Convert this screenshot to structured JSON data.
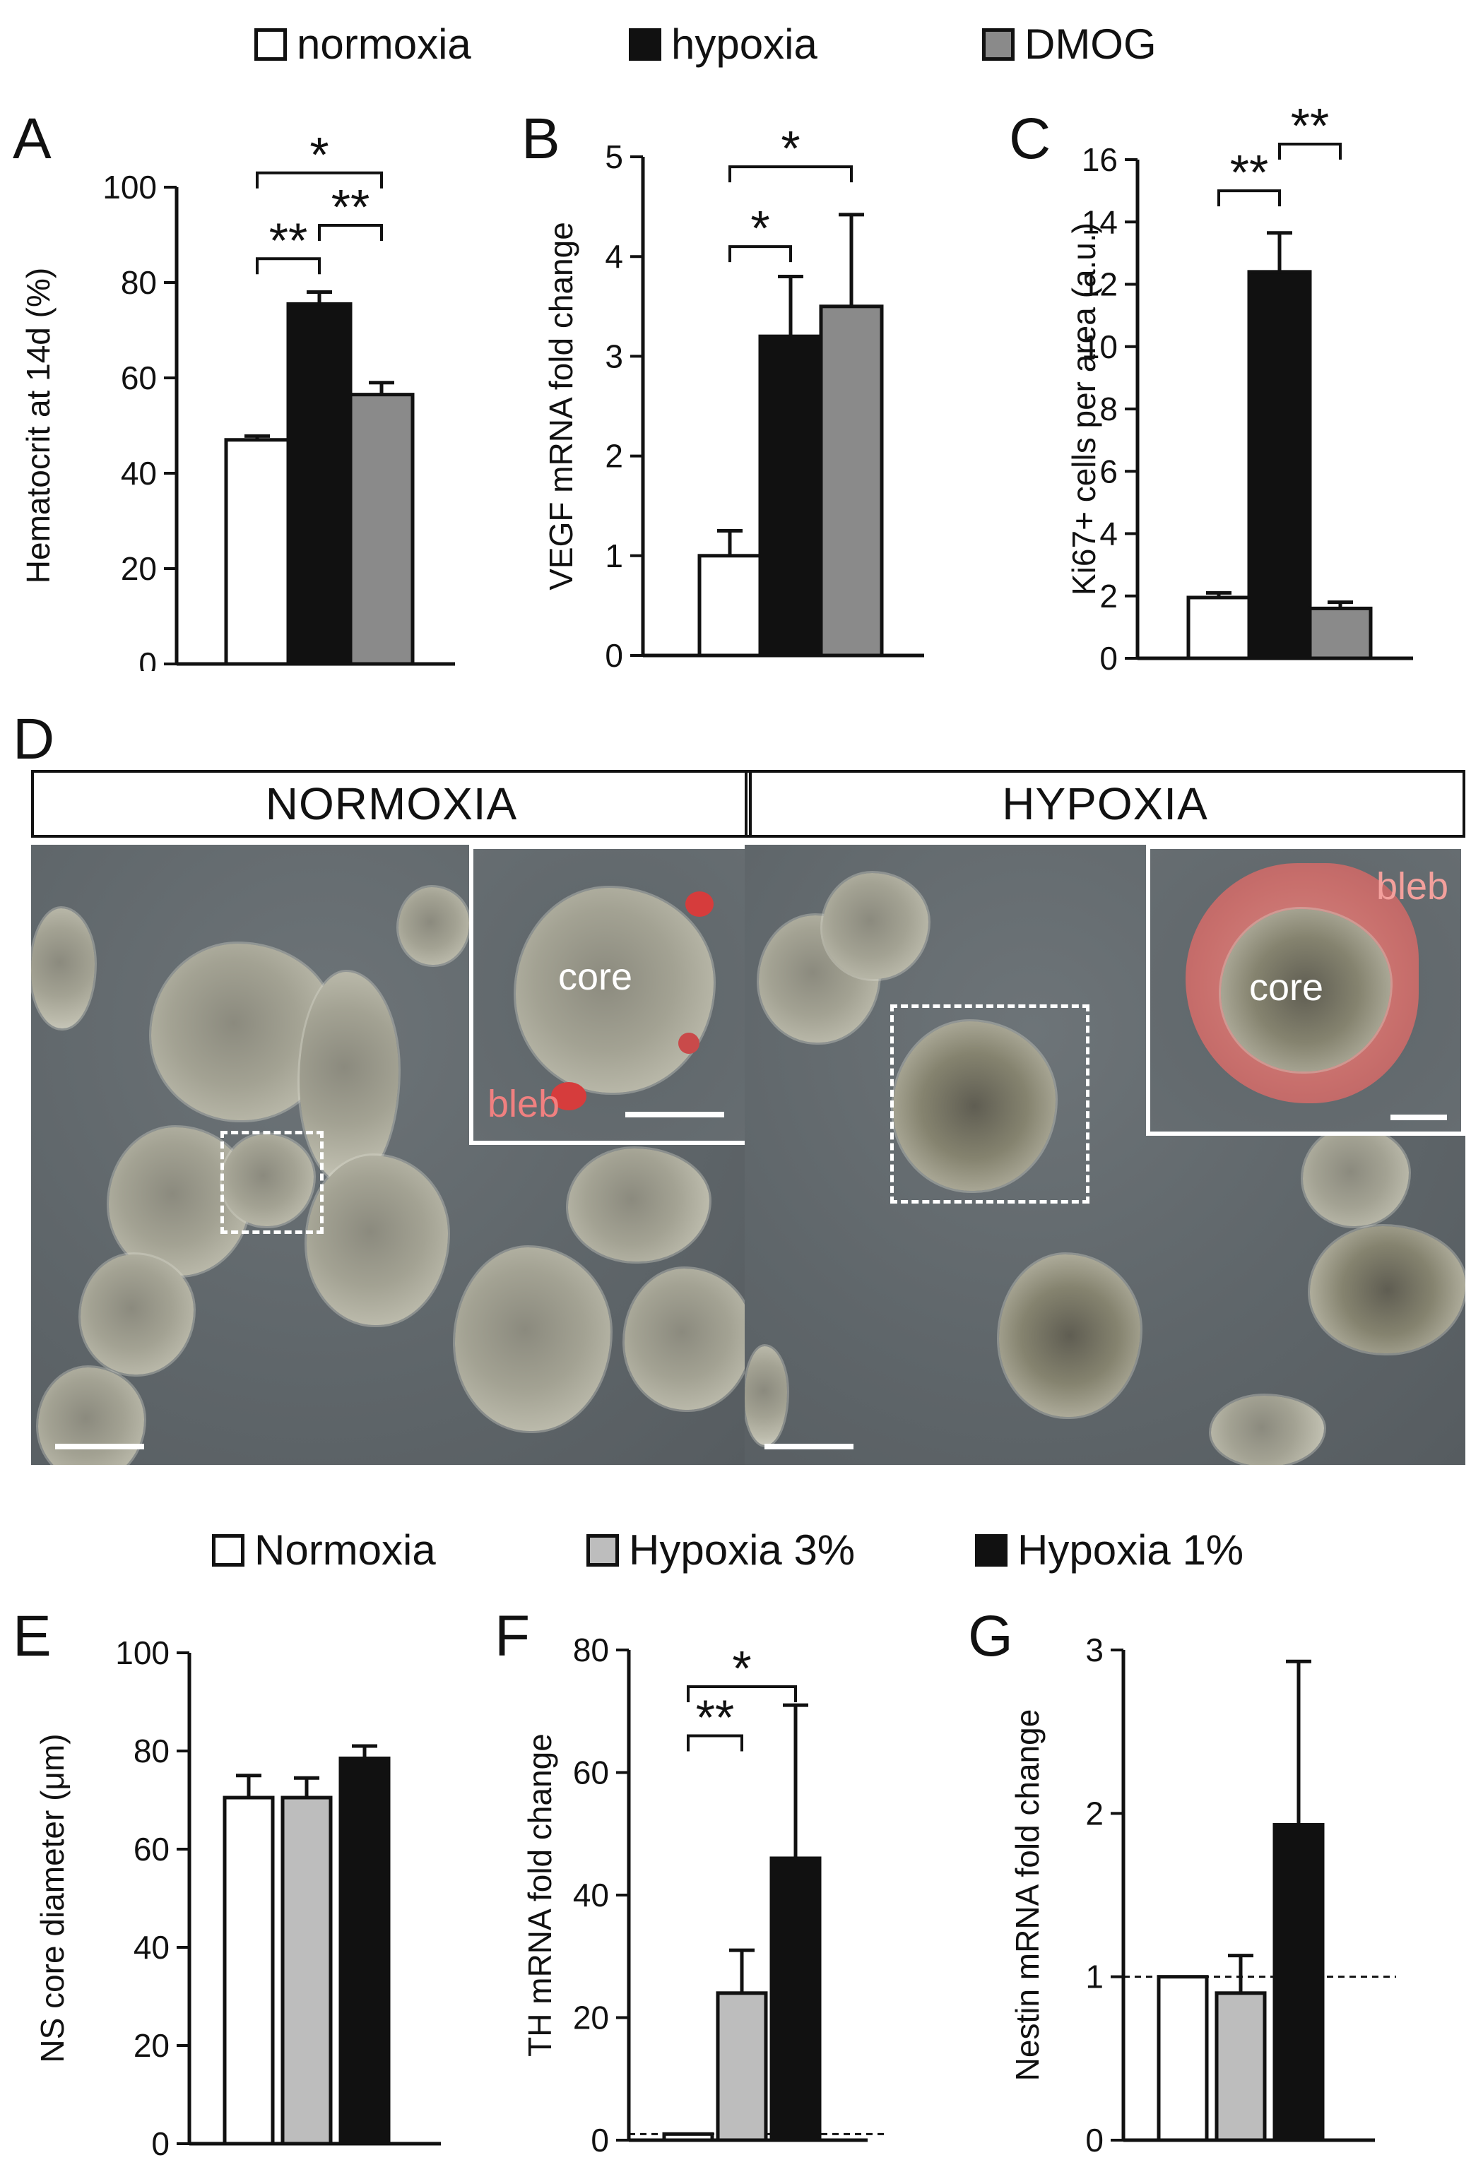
{
  "legend_top": [
    {
      "label": "normoxia",
      "color": "#ffffff"
    },
    {
      "label": "hypoxia",
      "color": "#111111"
    },
    {
      "label": "DMOG",
      "color": "#8a8a8a"
    }
  ],
  "legend_bottom": [
    {
      "label": "Normoxia",
      "color": "#ffffff"
    },
    {
      "label": "Hypoxia 3%",
      "color": "#bdbdbd"
    },
    {
      "label": "Hypoxia 1%",
      "color": "#111111"
    }
  ],
  "panel_letters": {
    "A": "A",
    "B": "B",
    "C": "C",
    "D": "D",
    "E": "E",
    "F": "F",
    "G": "G"
  },
  "microscopy": {
    "normoxia_title": "NORMOXIA",
    "hypoxia_title": "HYPOXIA",
    "core_label": "core",
    "bleb_label": "bleb"
  },
  "chart_data": [
    {
      "id": "A",
      "type": "bar",
      "ylabel": "Hematocrit at 14d (%)",
      "ylim": [
        0,
        100
      ],
      "yticks": [
        0,
        20,
        40,
        60,
        80,
        100
      ],
      "values": [
        47,
        75.5,
        56.5
      ],
      "errors": [
        0.8,
        2.5,
        2.5
      ],
      "colors": [
        "#ffffff",
        "#111111",
        "#8a8a8a"
      ],
      "sig": [
        {
          "from": 0,
          "to": 1,
          "label": "**",
          "level": 85
        },
        {
          "from": 1,
          "to": 2,
          "label": "**",
          "level": 92
        },
        {
          "from": 0,
          "to": 2,
          "label": "*",
          "level": 103
        }
      ]
    },
    {
      "id": "B",
      "type": "bar",
      "ylabel": "VEGF mRNA fold change",
      "ylim": [
        0,
        5
      ],
      "yticks": [
        0,
        1,
        2,
        3,
        4,
        5
      ],
      "values": [
        1.0,
        3.2,
        3.5
      ],
      "errors": [
        0.25,
        0.6,
        0.92
      ],
      "colors": [
        "#ffffff",
        "#111111",
        "#8a8a8a"
      ],
      "sig": [
        {
          "from": 0,
          "to": 1,
          "label": "*",
          "level": 4.1
        },
        {
          "from": 0,
          "to": 2,
          "label": "*",
          "level": 4.9
        }
      ]
    },
    {
      "id": "C",
      "type": "bar",
      "ylabel": "Ki67+ cells per area (a.u.)",
      "ylim": [
        0,
        16
      ],
      "yticks": [
        0,
        2,
        4,
        6,
        8,
        10,
        12,
        14,
        16
      ],
      "values": [
        1.95,
        12.4,
        1.6
      ],
      "errors": [
        0.15,
        1.25,
        0.2
      ],
      "colors": [
        "#ffffff",
        "#111111",
        "#8a8a8a"
      ],
      "sig": [
        {
          "from": 0,
          "to": 1,
          "label": "**",
          "level": 15.0
        },
        {
          "from": 1,
          "to": 2,
          "label": "**",
          "level": 16.5
        }
      ]
    },
    {
      "id": "E",
      "type": "bar",
      "ylabel": "NS core diameter (μm)",
      "ylim": [
        0,
        100
      ],
      "yticks": [
        0,
        20,
        40,
        60,
        80,
        100
      ],
      "values": [
        70.5,
        70.5,
        78.5
      ],
      "errors": [
        4.5,
        4.0,
        2.5
      ],
      "colors": [
        "#ffffff",
        "#bdbdbd",
        "#111111"
      ],
      "sig": []
    },
    {
      "id": "F",
      "type": "bar",
      "ylabel": "TH mRNA fold change",
      "ylim": [
        0,
        80
      ],
      "yticks": [
        0,
        20,
        40,
        60,
        80
      ],
      "values": [
        1,
        24,
        46
      ],
      "errors": [
        0,
        7,
        25
      ],
      "colors": [
        "#ffffff",
        "#bdbdbd",
        "#111111"
      ],
      "reference_line": 1,
      "sig": [
        {
          "from": 0,
          "to": 1,
          "label": "**",
          "level": 66
        },
        {
          "from": 0,
          "to": 2,
          "label": "*",
          "level": 74
        }
      ]
    },
    {
      "id": "G",
      "type": "bar",
      "ylabel": "Nestin mRNA fold change",
      "ylim": [
        0,
        3
      ],
      "yticks": [
        0,
        1,
        2,
        3
      ],
      "values": [
        1.0,
        0.9,
        1.93
      ],
      "errors": [
        0,
        0.23,
        1.0
      ],
      "colors": [
        "#ffffff",
        "#bdbdbd",
        "#111111"
      ],
      "reference_line": 1,
      "sig": []
    }
  ]
}
